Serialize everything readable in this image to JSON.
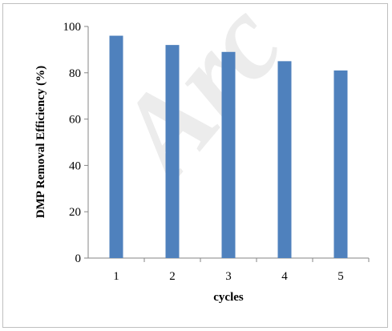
{
  "watermark": "Arc",
  "chart_data": {
    "type": "bar",
    "title": "",
    "categories": [
      "1",
      "2",
      "3",
      "4",
      "5"
    ],
    "values": [
      96,
      92,
      89,
      85,
      81
    ],
    "xlabel": "cycles",
    "ylabel": "DMP Removal Efficiency (%)",
    "ylim": [
      0,
      100
    ],
    "yticks": [
      0,
      20,
      40,
      60,
      80,
      100
    ],
    "grid": false,
    "legend": "none",
    "bar_color": "#4f81bd"
  }
}
